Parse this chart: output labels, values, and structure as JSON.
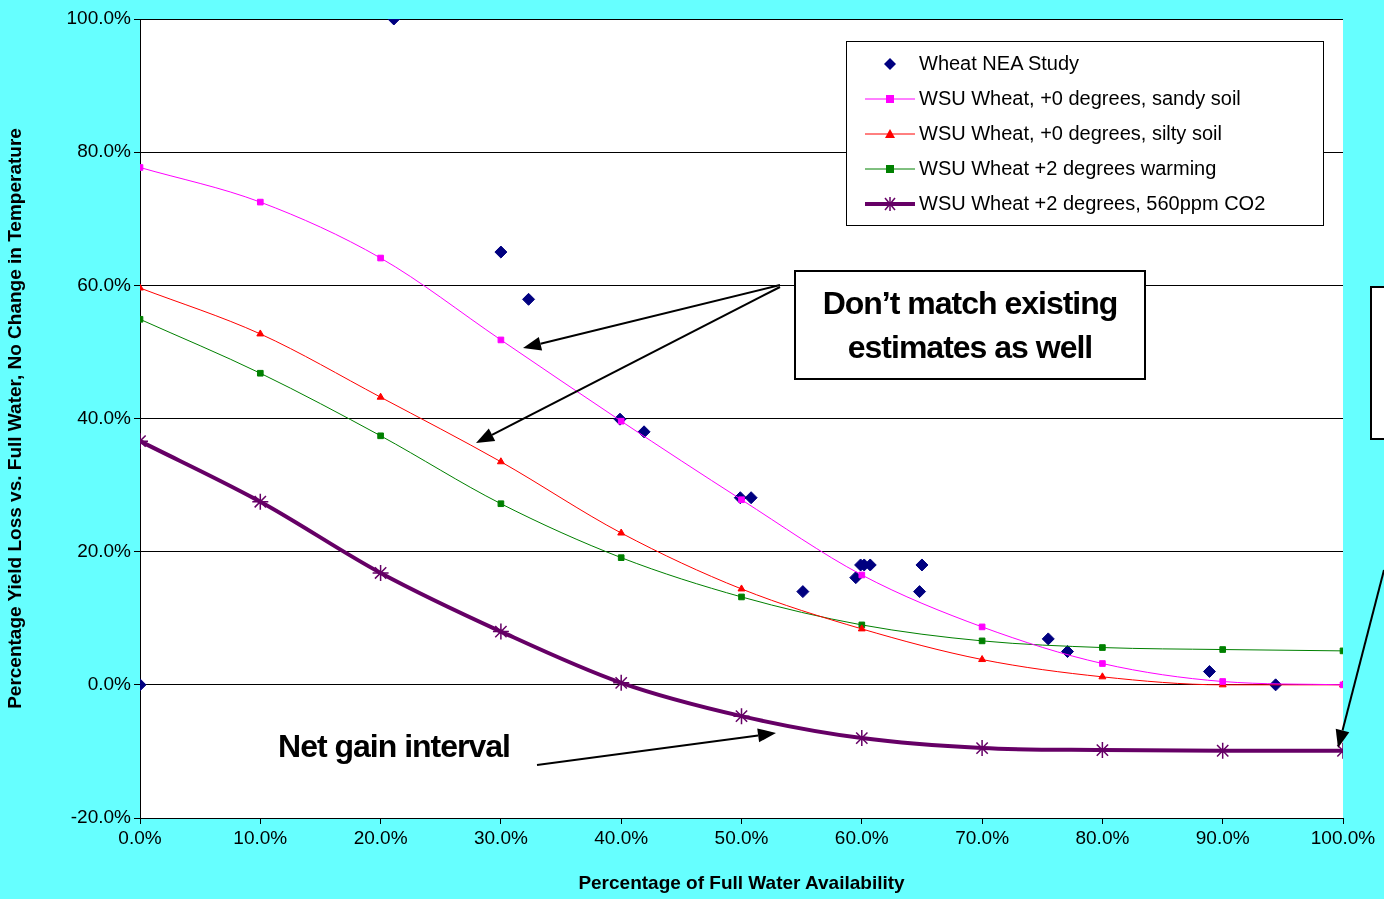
{
  "chart_data": {
    "type": "line",
    "xlabel": "Percentage of Full Water Availability",
    "ylabel": "Percentage Yield Loss vs. Full Water, No Change in Temperature",
    "xlim": [
      0,
      100
    ],
    "xticks": [
      {
        "value": 0,
        "label": "0.0%"
      },
      {
        "value": 10,
        "label": "10.0%"
      },
      {
        "value": 20,
        "label": "20.0%"
      },
      {
        "value": 30,
        "label": "30.0%"
      },
      {
        "value": 40,
        "label": "40.0%"
      },
      {
        "value": 50,
        "label": "50.0%"
      },
      {
        "value": 60,
        "label": "60.0%"
      },
      {
        "value": 70,
        "label": "70.0%"
      },
      {
        "value": 80,
        "label": "80.0%"
      },
      {
        "value": 90,
        "label": "90.0%"
      },
      {
        "value": 100,
        "label": "100.0%"
      }
    ],
    "ylim": [
      -20,
      100
    ],
    "yticks": [
      {
        "value": -20,
        "label": "-20.0%"
      },
      {
        "value": 0,
        "label": "0.0%"
      },
      {
        "value": 20,
        "label": "20.0%"
      },
      {
        "value": 40,
        "label": "40.0%"
      },
      {
        "value": 60,
        "label": "60.0%"
      },
      {
        "value": 80,
        "label": "80.0%"
      },
      {
        "value": 100,
        "label": "100.0%"
      }
    ],
    "grid": "y",
    "legend": "top right",
    "series": [
      {
        "name": "Wheat NEA Study",
        "type": "scatter",
        "marker": "diamond",
        "color": "#000080",
        "x": [
          0,
          21.1,
          30,
          32.3,
          39.9,
          41.9,
          49.9,
          50.8,
          55.1,
          59.5,
          59.9,
          60.2,
          60.7,
          64.8,
          65,
          75.5,
          77.1,
          88.9,
          94.4
        ],
        "values": [
          0,
          100,
          65,
          57.9,
          39.9,
          38,
          28.1,
          28.1,
          14,
          16.1,
          18,
          18,
          18,
          14,
          18,
          6.9,
          5,
          2,
          0
        ]
      },
      {
        "name": "WSU Wheat, +0 degrees, sandy soil",
        "type": "line",
        "marker": "square",
        "color": "#ff00ff",
        "x": [
          0,
          10,
          20,
          30,
          40,
          50,
          60,
          70,
          80,
          90,
          100
        ],
        "values": [
          77.7,
          72.5,
          64.1,
          51.8,
          39.6,
          27.8,
          16.5,
          8.7,
          3.2,
          0.5,
          0
        ]
      },
      {
        "name": "WSU Wheat, +0 degrees, silty soil",
        "type": "line",
        "marker": "triangle",
        "color": "#ff0000",
        "x": [
          0,
          10,
          20,
          30,
          40,
          50,
          60,
          70,
          80,
          90,
          100
        ],
        "values": [
          59.6,
          52.7,
          43.2,
          33.5,
          22.8,
          14.4,
          8.4,
          3.8,
          1.2,
          0,
          0
        ]
      },
      {
        "name": "WSU Wheat +2 degrees warming",
        "type": "line",
        "marker": "square",
        "color": "#008000",
        "x": [
          0,
          10,
          20,
          30,
          40,
          50,
          60,
          70,
          80,
          90,
          100
        ],
        "values": [
          54.9,
          46.8,
          37.4,
          27.2,
          19.1,
          13.2,
          9,
          6.6,
          5.6,
          5.3,
          5.1
        ]
      },
      {
        "name": "WSU Wheat +2 degrees, 560ppm CO2",
        "type": "line",
        "marker": "cross",
        "color": "#660066",
        "x": [
          0,
          10,
          20,
          30,
          40,
          50,
          60,
          70,
          80,
          90,
          100
        ],
        "values": [
          36.6,
          27.5,
          16.8,
          8,
          0.3,
          -4.7,
          -8,
          -9.5,
          -9.8,
          -9.9,
          -9.9
        ]
      }
    ],
    "annotations": [
      "Don’t match existing estimates as well",
      "Net gain interval"
    ]
  }
}
